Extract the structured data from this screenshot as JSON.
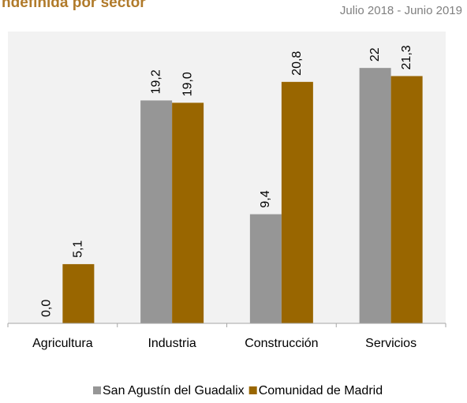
{
  "chart_data": {
    "type": "bar",
    "title": "ndefinida por sector",
    "subtitle": "Julio 2018 - Junio 2019",
    "categories": [
      "Agricultura",
      "Industria",
      "Construcción",
      "Servicios"
    ],
    "series": [
      {
        "name": "San Agustín del Guadalix",
        "color": "#969696",
        "values": [
          0.0,
          19.2,
          9.4,
          22
        ],
        "value_labels": [
          "0,0",
          "19,2",
          "9,4",
          "22"
        ]
      },
      {
        "name": "Comunidad de Madrid",
        "color": "#996600",
        "values": [
          5.1,
          19.0,
          20.8,
          21.3
        ],
        "value_labels": [
          "5,1",
          "19,0",
          "20,8",
          "21,3"
        ]
      }
    ],
    "ylim": [
      0,
      25
    ]
  }
}
